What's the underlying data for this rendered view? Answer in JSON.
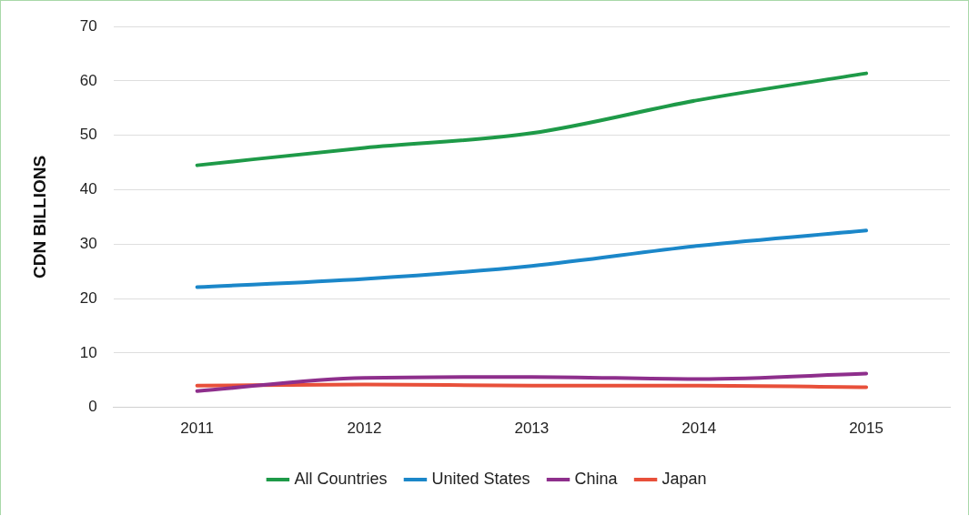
{
  "chart_data": {
    "type": "line",
    "ylabel": "CDN BILLIONS",
    "categories": [
      "2011",
      "2012",
      "2013",
      "2014",
      "2015"
    ],
    "series": [
      {
        "name": "All Countries",
        "color": "#1e9a48",
        "values": [
          44.5,
          47.7,
          50.4,
          56.5,
          61.4
        ]
      },
      {
        "name": "United States",
        "color": "#1b87c9",
        "values": [
          22.1,
          23.6,
          26.0,
          29.7,
          32.5
        ]
      },
      {
        "name": "China",
        "color": "#8e2f8c",
        "values": [
          3.0,
          5.4,
          5.6,
          5.2,
          6.2
        ]
      },
      {
        "name": "Japan",
        "color": "#e8503a",
        "values": [
          4.0,
          4.2,
          4.0,
          4.0,
          3.7
        ]
      }
    ],
    "ylim": [
      0,
      70
    ],
    "yticks": [
      0,
      10,
      20,
      30,
      40,
      50,
      60,
      70
    ],
    "grid": "y",
    "legend": "bottom",
    "marker": "none",
    "line_style": "solid"
  }
}
